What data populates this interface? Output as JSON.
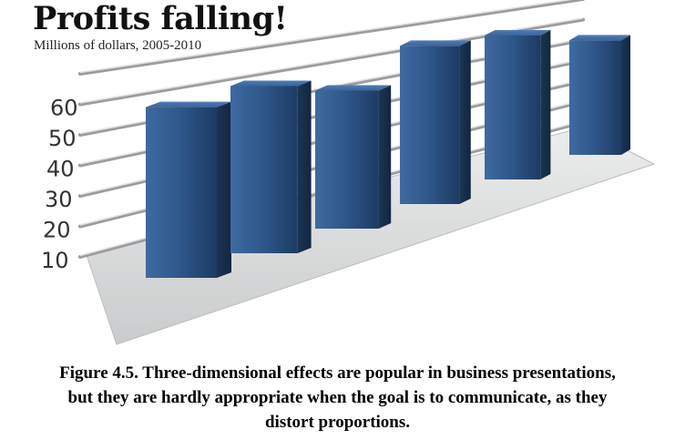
{
  "chart_data": {
    "type": "bar",
    "title": "Profits falling!",
    "subtitle": "Millions of dollars, 2005-2010",
    "xlabel": "",
    "ylabel": "",
    "yticks": [
      "10",
      "20",
      "30",
      "40",
      "50",
      "60"
    ],
    "ylim": [
      10,
      70
    ],
    "grid": true,
    "style": "3d-perspective",
    "bar_color": "#2f5585",
    "series": [
      {
        "values": [
          64,
          66,
          58,
          70,
          68,
          58
        ]
      }
    ]
  },
  "caption": {
    "line1": "Figure 4.5. Three-dimensional effects are popular in business presentations,",
    "line2": "but they are hardly appropriate when the goal is to communicate, as they",
    "line3": "distort proportions."
  }
}
